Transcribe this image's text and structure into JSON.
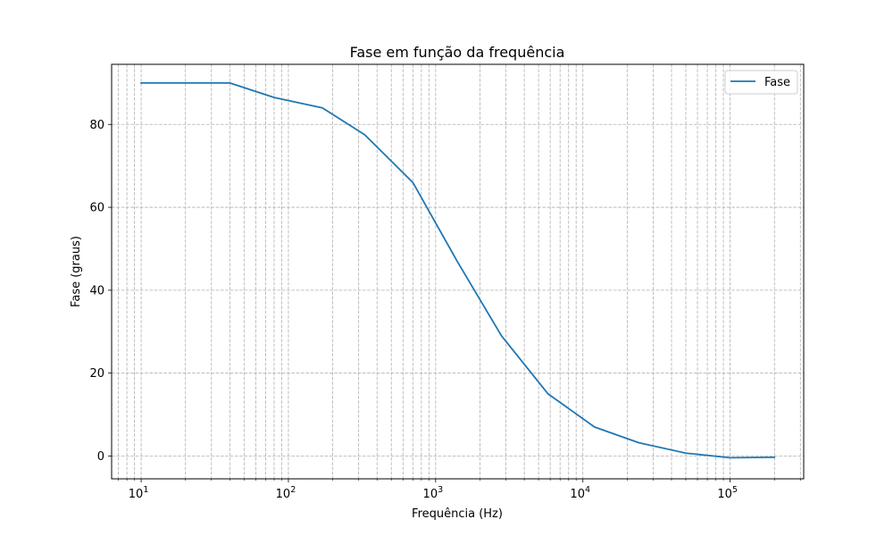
{
  "chart_data": {
    "type": "line",
    "title": "Fase em função da frequência",
    "xlabel": "Frequência (Hz)",
    "ylabel": "Fase (graus)",
    "x_scale": "log",
    "xlim": [
      6.3,
      316000
    ],
    "ylim": [
      -5.5,
      94.5
    ],
    "x_ticks": [
      {
        "value": 10,
        "base": "10",
        "exp": "1"
      },
      {
        "value": 100,
        "base": "10",
        "exp": "2"
      },
      {
        "value": 1000,
        "base": "10",
        "exp": "3"
      },
      {
        "value": 10000,
        "base": "10",
        "exp": "4"
      },
      {
        "value": 100000,
        "base": "10",
        "exp": "5"
      }
    ],
    "y_ticks": [
      {
        "value": 0,
        "label": "0"
      },
      {
        "value": 20,
        "label": "20"
      },
      {
        "value": 40,
        "label": "40"
      },
      {
        "value": 60,
        "label": "60"
      },
      {
        "value": 80,
        "label": "80"
      }
    ],
    "grid": true,
    "grid_minor_x": true,
    "legend_position": "top-right",
    "series": [
      {
        "name": "Fase",
        "color": "#1f77b4",
        "x": [
          10,
          20,
          40,
          80,
          170,
          330,
          700,
          1400,
          2800,
          5800,
          12000,
          24000,
          50000,
          100000,
          200000
        ],
        "y": [
          90,
          90,
          90,
          86.5,
          84,
          77.5,
          66,
          47,
          29,
          15,
          7,
          3.2,
          0.7,
          -0.4,
          -0.3
        ]
      }
    ]
  }
}
